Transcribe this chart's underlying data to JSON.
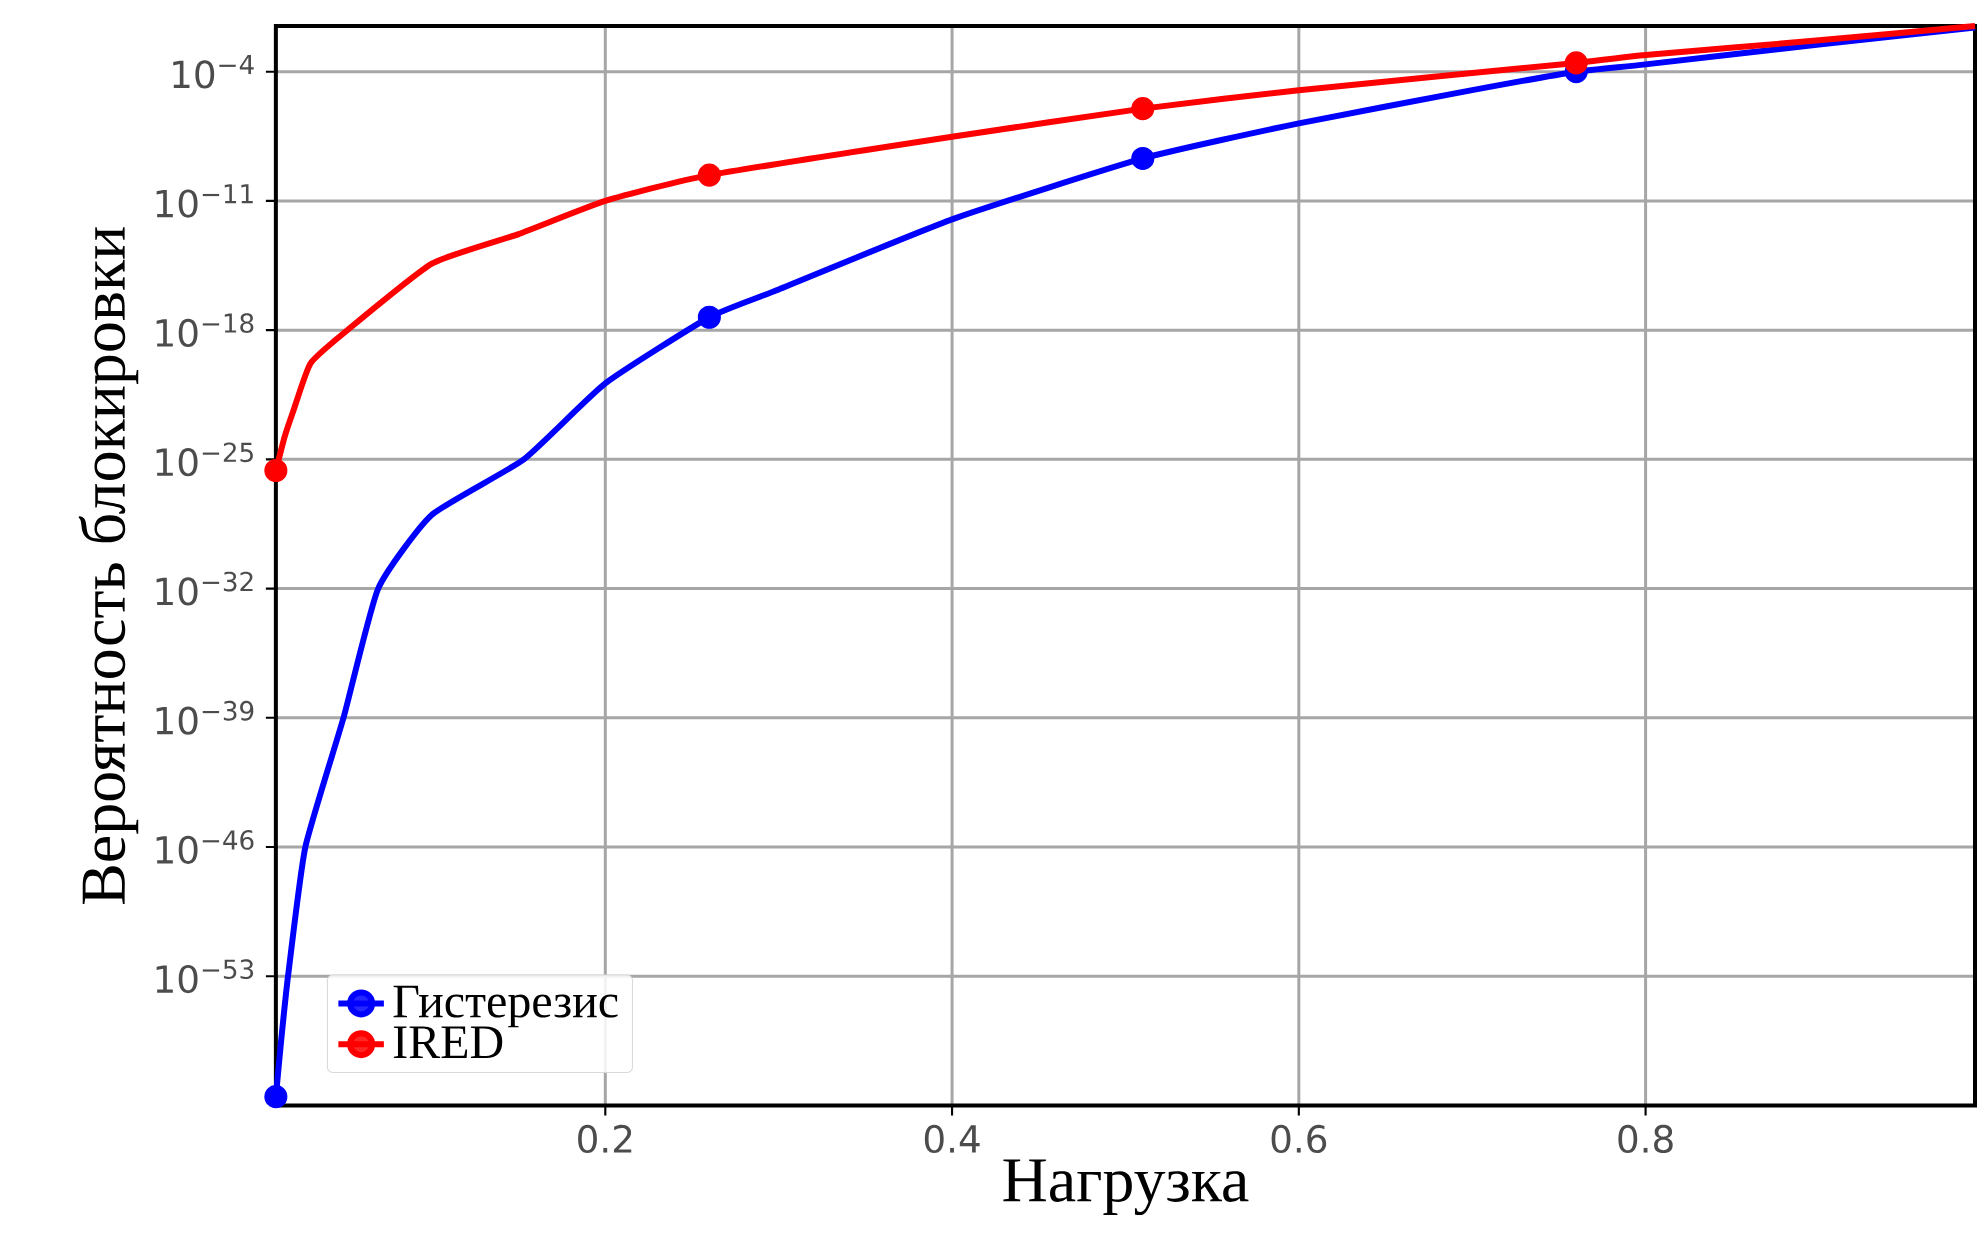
{
  "chart_data": {
    "type": "line",
    "xlabel": "Нагрузка",
    "ylabel": "Вероятность блокировки",
    "log": "y",
    "grid": true,
    "legend": "bottom left",
    "line_style": "solid",
    "xlim": [
      0.01,
      0.99
    ],
    "xticks": [
      0.2,
      0.4,
      0.6,
      0.8
    ],
    "ylim": [
      1e-60,
      0.03
    ],
    "yticks": [
      {
        "value": 1e-53,
        "label": "10$^{−53}$"
      },
      {
        "value": 1e-46,
        "label": "10$^{−46}$"
      },
      {
        "value": 1e-39,
        "label": "10$^{−39}$"
      },
      {
        "value": 1e-32,
        "label": "10$^{−32}$"
      },
      {
        "value": 1e-25,
        "label": "10$^{−25}$"
      },
      {
        "value": 1e-18,
        "label": "10$^{−18}$"
      },
      {
        "value": 1e-11,
        "label": "10$^{−11}$"
      },
      {
        "value": 0.0001,
        "label": "10$^{−4}$"
      }
    ],
    "series": [
      {
        "name": "Гистерезис",
        "color": "#0000ff",
        "x": [
          0.01,
          0.013,
          0.017,
          0.027,
          0.049,
          0.069,
          0.1,
          0.153,
          0.2,
          0.26,
          0.3,
          0.4,
          0.51,
          0.6,
          0.7,
          0.76,
          0.8,
          0.9,
          0.99
        ],
        "values": [
          3e-60,
          3e-57,
          1e-53,
          1e-46,
          1e-39,
          1e-32,
          1e-28,
          1e-25,
          1.3e-21,
          5e-18,
          1.6e-16,
          1e-12,
          2e-09,
          1.6e-07,
          1e-05,
          0.0001,
          0.00025,
          0.003,
          0.025
        ]
      },
      {
        "name": "IRED",
        "color": "#ff0000",
        "x": [
          0.01,
          0.015,
          0.02,
          0.03,
          0.05,
          0.1,
          0.15,
          0.2,
          0.26,
          0.4,
          0.51,
          0.6,
          0.76,
          0.8,
          0.9,
          0.99
        ],
        "values": [
          2.5e-26,
          1.6e-24,
          4e-23,
          1.6e-20,
          8e-19,
          4e-15,
          1.6e-13,
          1e-11,
          2.5e-10,
          3e-08,
          1e-06,
          1e-05,
          0.0003,
          0.0008,
          0.005,
          0.03
        ]
      },
      {
        "color": "#0000ff",
        "type": "scatter",
        "marker": "circle",
        "x": [
          0.01,
          0.26,
          0.51,
          0.76
        ],
        "values": [
          3e-60,
          5e-18,
          2e-09,
          0.0001
        ]
      },
      {
        "color": "#ff0000",
        "type": "scatter",
        "marker": "circle",
        "x": [
          0.01,
          0.26,
          0.51,
          0.76
        ],
        "values": [
          2.5e-26,
          2.5e-10,
          1e-06,
          0.0003
        ]
      }
    ]
  }
}
